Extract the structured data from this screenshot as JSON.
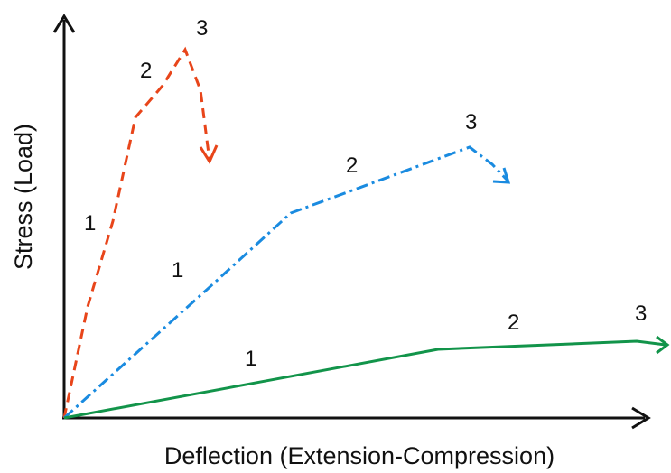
{
  "axes": {
    "x_title": "Deflection (Extension-Compression)",
    "y_title": "Stress (Load)"
  },
  "curves": [
    {
      "color": "#e8451a",
      "style": "dashed",
      "stage_labels": [
        "1",
        "2",
        "3"
      ]
    },
    {
      "color": "#1a8be0",
      "style": "dash-dot",
      "stage_labels": [
        "1",
        "2",
        "3"
      ]
    },
    {
      "color": "#12944a",
      "style": "solid",
      "stage_labels": [
        "1",
        "2",
        "3"
      ]
    }
  ]
}
